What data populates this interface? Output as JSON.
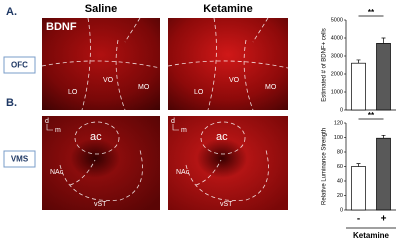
{
  "panels": {
    "a_label": "A.",
    "b_label": "B.",
    "col1": "Saline",
    "col2": "Ketamine",
    "row1": "OFC",
    "row2": "VMS",
    "img_a": {
      "marker": "BDNF",
      "regions": [
        "LO",
        "VO",
        "MO"
      ]
    },
    "img_b": {
      "regions": [
        "ac",
        "NAc",
        "vST"
      ],
      "axes": [
        "d",
        "m"
      ]
    }
  },
  "chart_data": [
    {
      "type": "bar",
      "y_label": "Estimated # of BDNF+ cells",
      "categories": [
        null,
        null
      ],
      "values": [
        2600,
        3700
      ],
      "errors": [
        180,
        300
      ],
      "colors": [
        "#ffffff",
        "#595959"
      ],
      "ylim": [
        0,
        5000
      ],
      "yticks": [
        0,
        1000,
        2000,
        3000,
        4000,
        5000
      ],
      "significance": "**"
    },
    {
      "type": "bar",
      "y_label": "Relative Luminance Strength",
      "categories": [
        "-",
        "+"
      ],
      "values": [
        60,
        99
      ],
      "errors": [
        4,
        4
      ],
      "colors": [
        "#ffffff",
        "#595959"
      ],
      "ylim": [
        0,
        120
      ],
      "yticks": [
        0,
        20,
        40,
        60,
        80,
        100,
        120
      ],
      "significance": "**",
      "x_label": "Ketamine"
    }
  ]
}
